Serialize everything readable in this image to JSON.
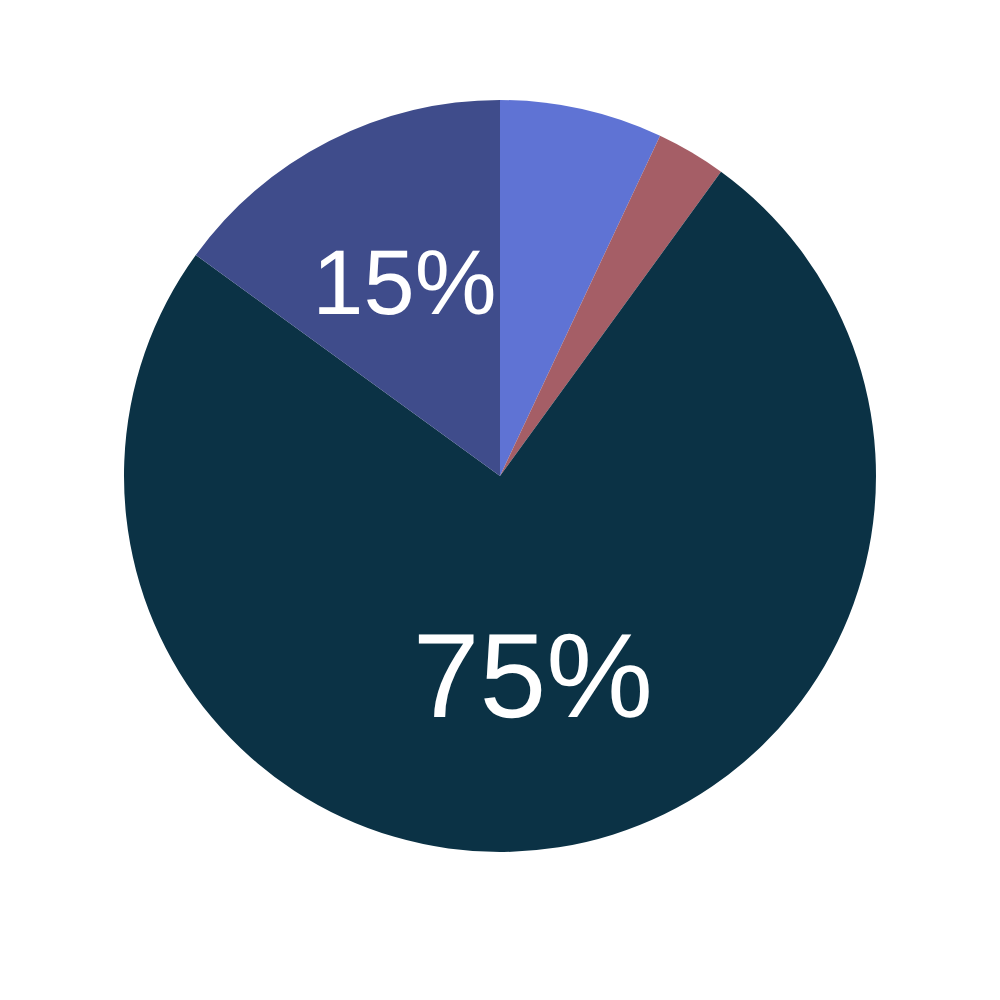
{
  "chart_data": {
    "type": "pie",
    "categories": [
      null,
      null,
      null,
      null
    ],
    "values": [
      7,
      3,
      75,
      15
    ],
    "value_labels": [
      null,
      null,
      "75%",
      "15%"
    ],
    "colors": [
      "#5f73d4",
      "#a55e66",
      "#0b3245",
      "#3f4c8b"
    ],
    "legend": false
  }
}
